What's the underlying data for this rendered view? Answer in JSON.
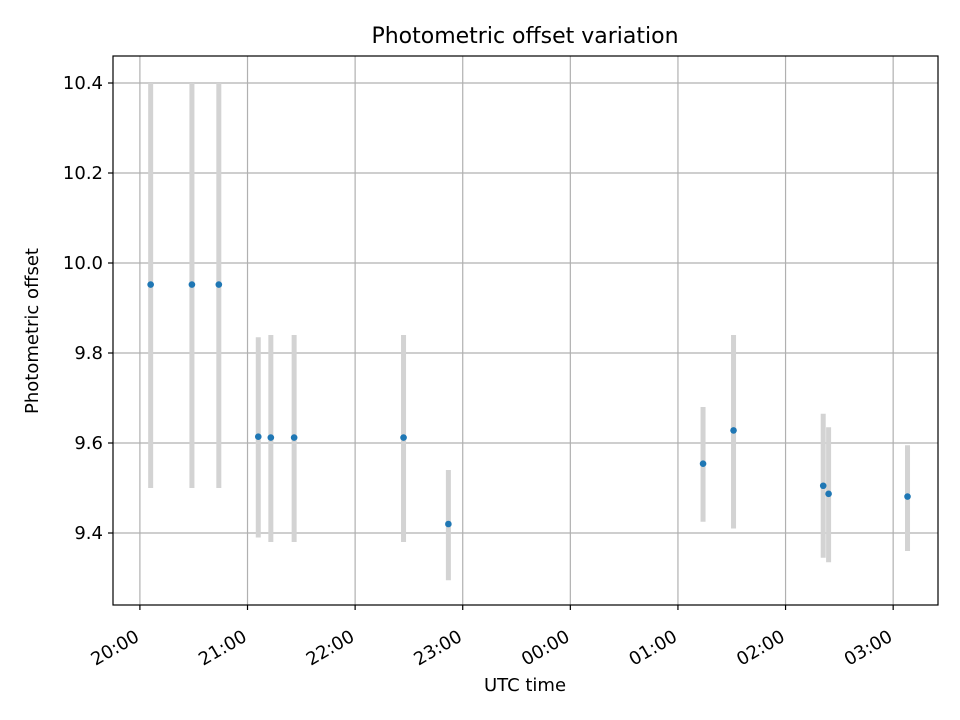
{
  "chart_data": {
    "type": "scatter",
    "title": "Photometric offset variation",
    "xlabel": "UTC time",
    "ylabel": "Photometric offset",
    "x_range": [
      "19:45",
      "03:25"
    ],
    "x_ticks": [
      "20:00",
      "21:00",
      "22:00",
      "23:00",
      "00:00",
      "01:00",
      "02:00",
      "03:00"
    ],
    "ylim": [
      9.24,
      10.46
    ],
    "y_ticks": [
      "9.4",
      "9.6",
      "9.8",
      "10.0",
      "10.2",
      "10.4"
    ],
    "grid": true,
    "point_color": "#1f77b4",
    "errorbar_color": "#d3d3d3",
    "points": [
      {
        "x": "20:06",
        "y": 9.952,
        "y_low": 9.5,
        "y_high": 10.4
      },
      {
        "x": "20:29",
        "y": 9.952,
        "y_low": 9.5,
        "y_high": 10.4
      },
      {
        "x": "20:44",
        "y": 9.952,
        "y_low": 9.5,
        "y_high": 10.4
      },
      {
        "x": "21:06",
        "y": 9.614,
        "y_low": 9.39,
        "y_high": 9.835
      },
      {
        "x": "21:13",
        "y": 9.612,
        "y_low": 9.38,
        "y_high": 9.84
      },
      {
        "x": "21:26",
        "y": 9.612,
        "y_low": 9.38,
        "y_high": 9.84
      },
      {
        "x": "22:27",
        "y": 9.612,
        "y_low": 9.38,
        "y_high": 9.84
      },
      {
        "x": "22:52",
        "y": 9.42,
        "y_low": 9.295,
        "y_high": 9.54
      },
      {
        "x": "01:14",
        "y": 9.554,
        "y_low": 9.425,
        "y_high": 9.68
      },
      {
        "x": "01:31",
        "y": 9.628,
        "y_low": 9.41,
        "y_high": 9.84
      },
      {
        "x": "02:21",
        "y": 9.505,
        "y_low": 9.345,
        "y_high": 9.665
      },
      {
        "x": "02:24",
        "y": 9.487,
        "y_low": 9.335,
        "y_high": 9.635
      },
      {
        "x": "03:08",
        "y": 9.481,
        "y_low": 9.36,
        "y_high": 9.595
      }
    ]
  }
}
